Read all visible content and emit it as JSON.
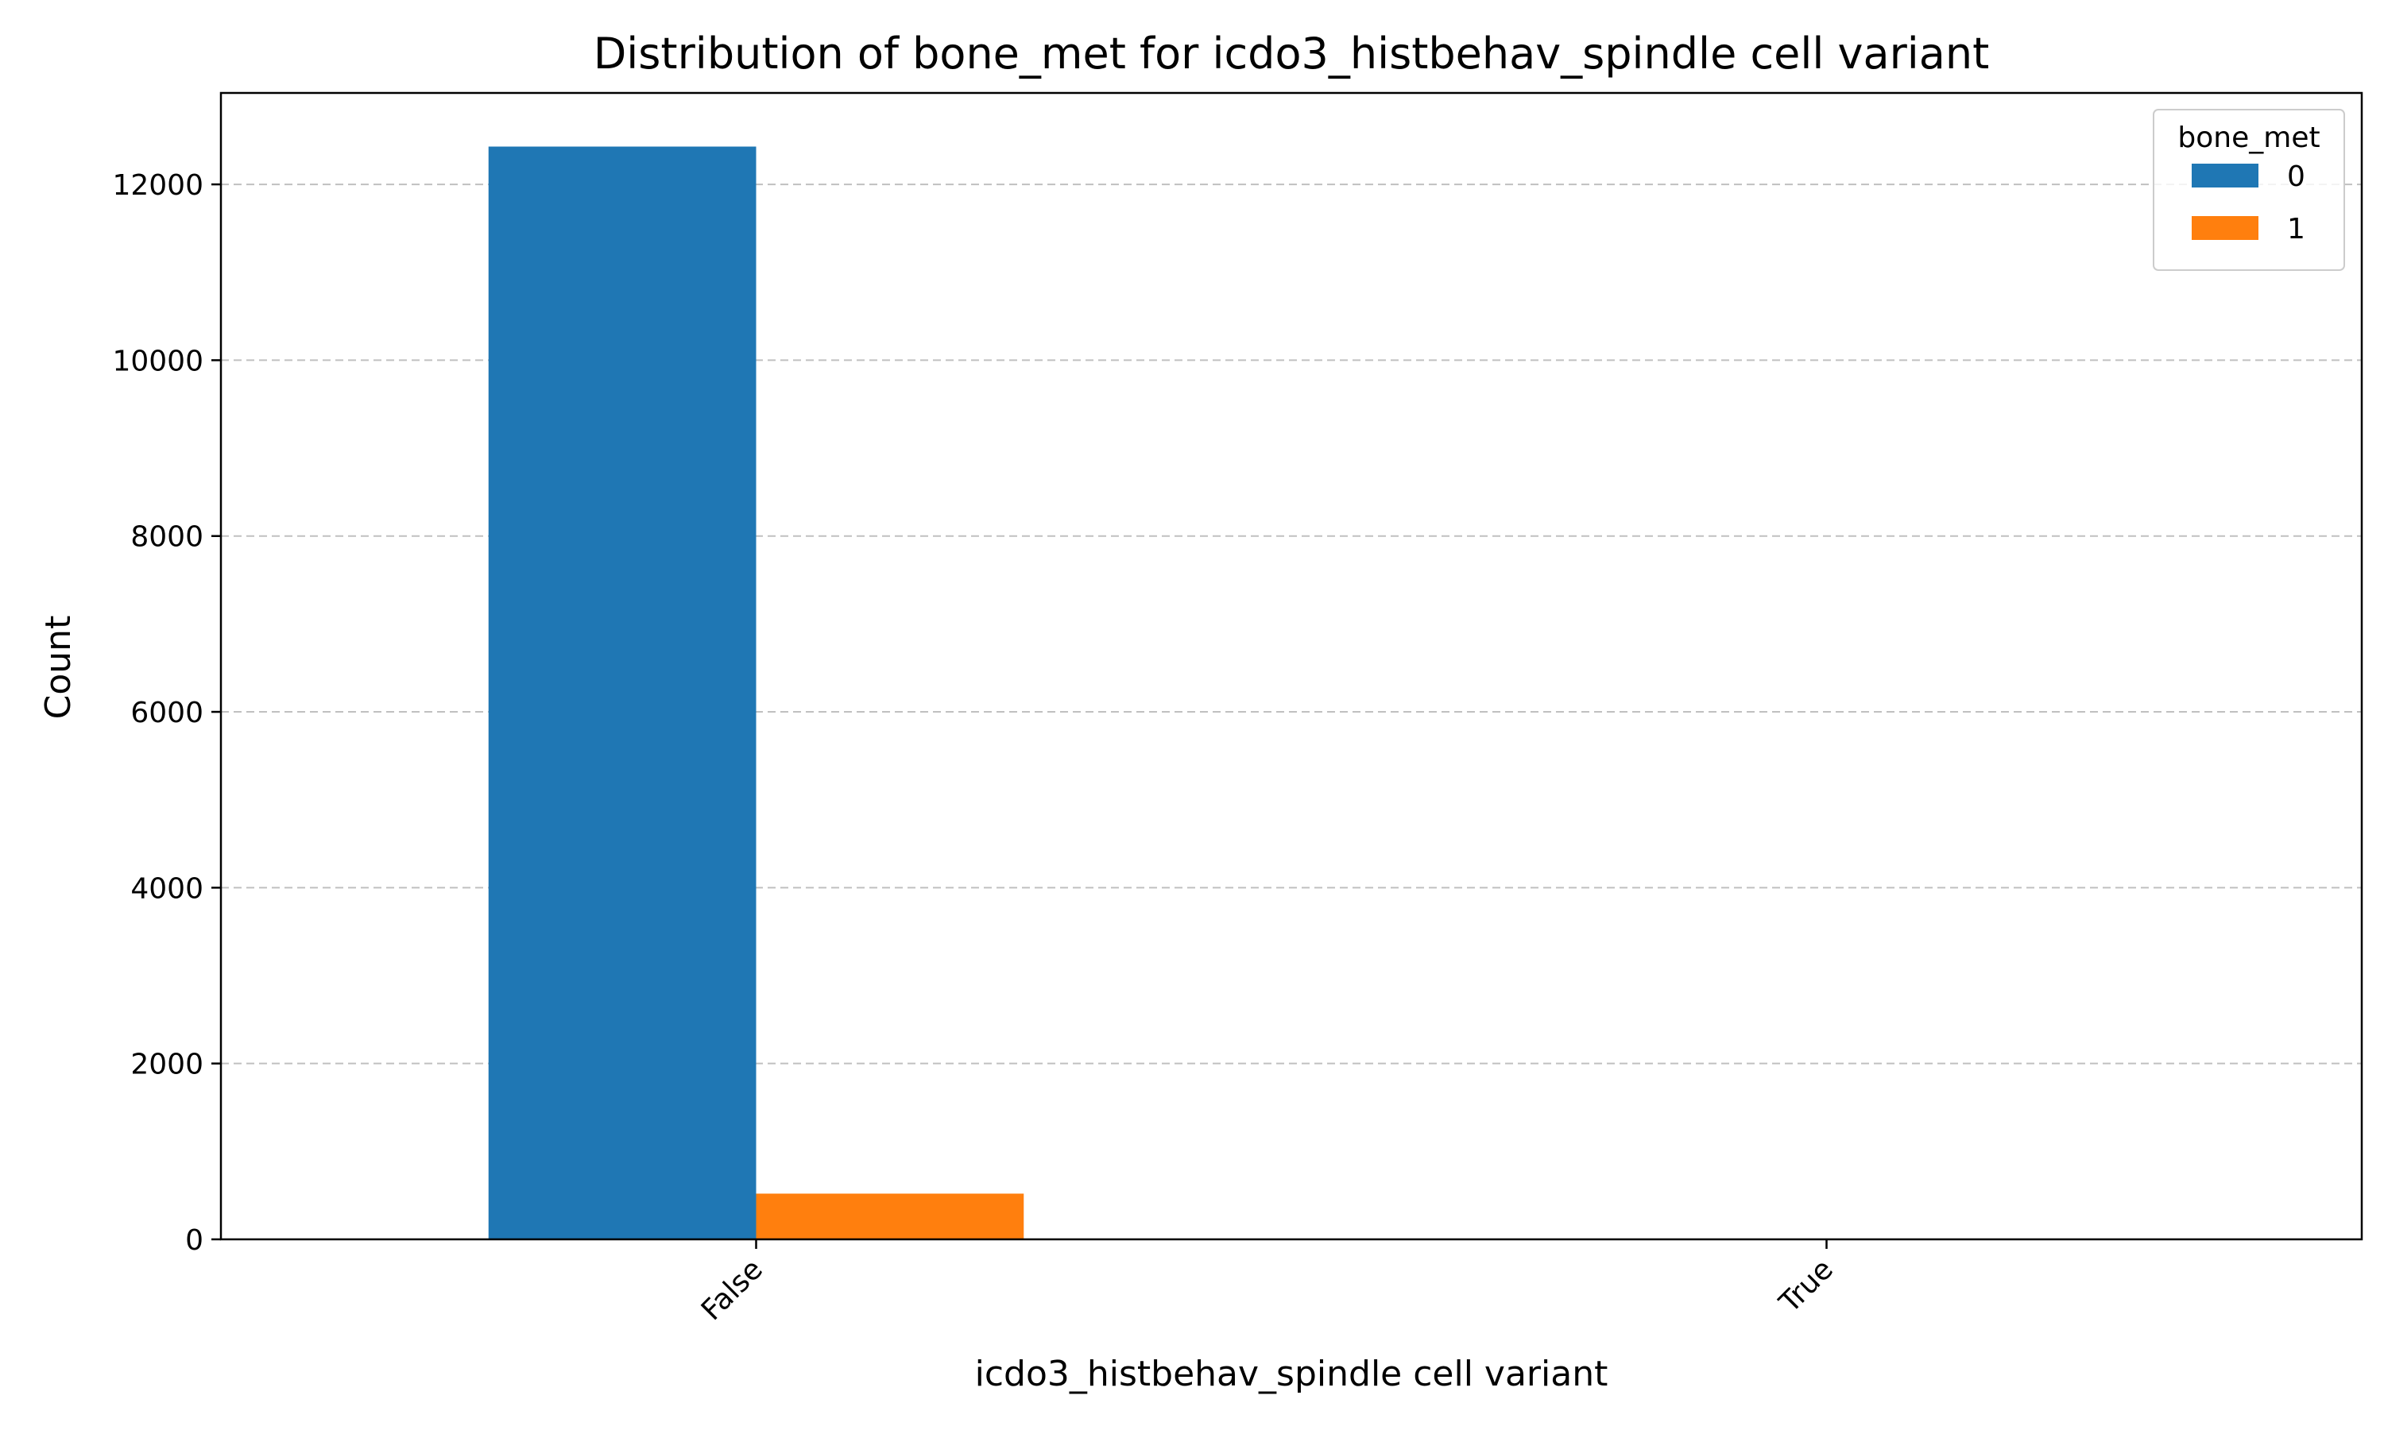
{
  "chart_data": {
    "type": "bar",
    "title": "Distribution of bone_met for icdo3_histbehav_spindle cell variant",
    "xlabel": "icdo3_histbehav_spindle cell variant",
    "ylabel": "Count",
    "categories": [
      "False",
      "True"
    ],
    "series": [
      {
        "name": "0",
        "values": [
          12430,
          0
        ],
        "color": "#1f77b4"
      },
      {
        "name": "1",
        "values": [
          520,
          0
        ],
        "color": "#ff7f0e"
      }
    ],
    "ylim": [
      0,
      13040
    ],
    "yticks": [
      0,
      2000,
      4000,
      6000,
      8000,
      10000,
      12000
    ],
    "grid": "y-dashed",
    "legend": {
      "title": "bone_met",
      "position": "top-right"
    }
  }
}
